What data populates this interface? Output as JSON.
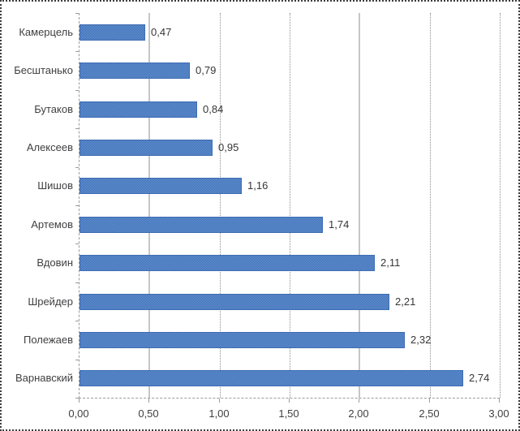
{
  "chart_data": {
    "type": "bar",
    "orientation": "horizontal",
    "title": "",
    "xlabel": "",
    "ylabel": "",
    "legend": "none",
    "grid": "vertical",
    "xlim": [
      0,
      3
    ],
    "categories": [
      "Камерцель",
      "Бесштанько",
      "Бутаков",
      "Алексеев",
      "Шишов",
      "Артемов",
      "Вдовин",
      "Шрейдер",
      "Полежаев",
      "Варнавский"
    ],
    "values": [
      0.47,
      0.79,
      0.84,
      0.95,
      1.16,
      1.74,
      2.11,
      2.21,
      2.32,
      2.74
    ],
    "value_labels": [
      "0,47",
      "0,79",
      "0,84",
      "0,95",
      "1,16",
      "1,74",
      "2,11",
      "2,21",
      "2,32",
      "2,74"
    ],
    "x_tick_values": [
      0,
      0.5,
      1,
      1.5,
      2,
      2.5,
      3
    ],
    "x_tick_labels": [
      "0,00",
      "0,50",
      "1,00",
      "1,50",
      "2,00",
      "2,50",
      "3,00"
    ],
    "colors": {
      "bar_fill": "#4f81bd",
      "bar_fill_light": "#6c9bd8",
      "bar_fill_dark": "#3767af",
      "bar_border": "#3d6cb4",
      "gridline": "#8e8e8e",
      "axis": "#9c9c9c",
      "text": "#3f3f3f"
    }
  }
}
